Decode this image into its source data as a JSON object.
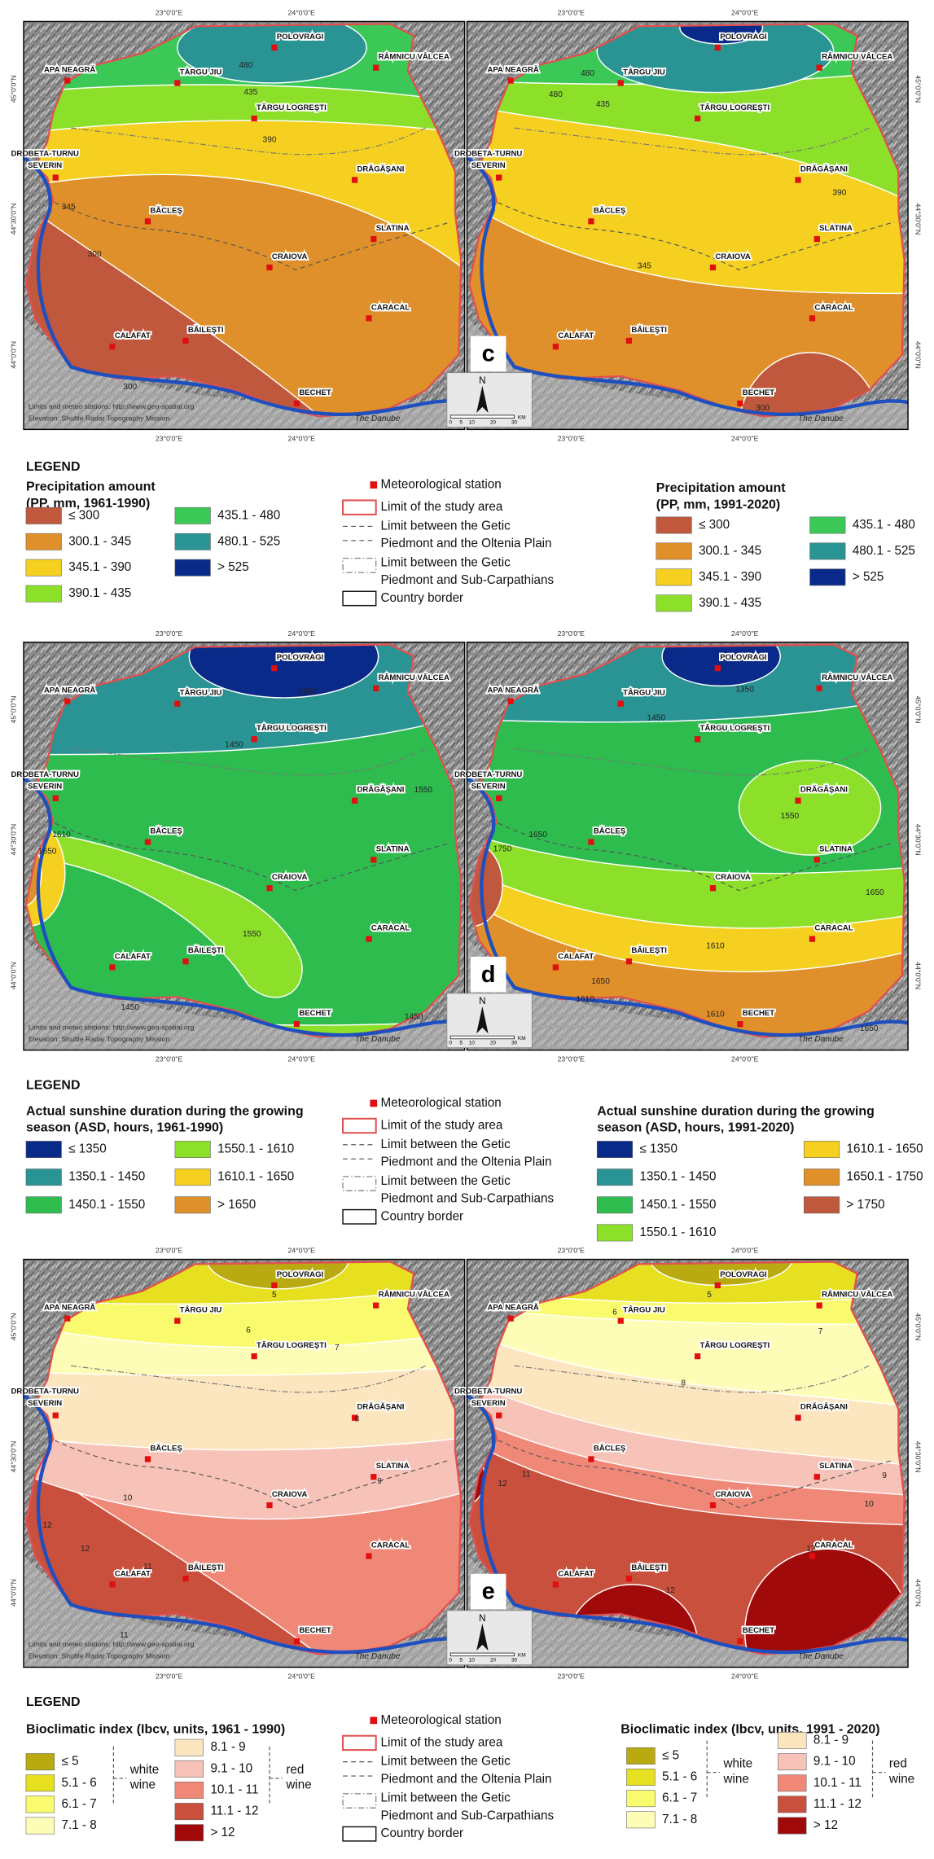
{
  "graticule": {
    "lon": [
      "23°0'0\"E",
      "24°0'0\"E"
    ],
    "lat": [
      "45°0'0\"N",
      "44°30'0\"N",
      "44°0'0\"N"
    ]
  },
  "stations": [
    "POLOVRAGI",
    "RÂMNICU VÂLCEA",
    "APA NEAGRĂ",
    "TÂRGU JIU",
    "TÂRGU LOGREŞTI",
    "DROBETA-TURNU",
    "SEVERIN",
    "DRĂGĂŞANI",
    "BĂCLEŞ",
    "SLATINA",
    "CRAIOVA",
    "CARACAL",
    "CALAFAT",
    "BĂILEŞTI",
    "BECHET"
  ],
  "credits": [
    "Limits and meteo stations: http://www.geo-spatial.org",
    "Elevation: Shuttle Radar Topography Mission"
  ],
  "river": "The Danube",
  "scale": {
    "north": "N",
    "numbers": [
      0,
      5,
      10,
      20,
      30
    ],
    "unit": "KM"
  },
  "common_legend": {
    "heading": "LEGEND",
    "items": [
      "Meteorological station",
      "Limit of the study area",
      "Limit between the Getic",
      "Piedmont and the Oltenia Plain",
      "Limit between the Getic",
      "Piedmont and Sub-Carpathians",
      "Country border"
    ]
  },
  "rows": [
    {
      "letter": "c",
      "maps": [
        {
          "contours": [
            480,
            435,
            390,
            345,
            300,
            300
          ]
        },
        {
          "contours": [
            480,
            435,
            480,
            390,
            345,
            300
          ]
        }
      ],
      "legends": [
        {
          "title": [
            "Precipitation amount",
            "(PP, mm, 1961-1990)"
          ],
          "items": [
            {
              "label": "≤ 300",
              "color": "#c0583e"
            },
            {
              "label": "300.1 - 345",
              "color": "#e0902a"
            },
            {
              "label": "345.1 - 390",
              "color": "#f5d020"
            },
            {
              "label": "390.1 - 435",
              "color": "#8ce02a"
            },
            {
              "label": "435.1 - 480",
              "color": "#3cc857"
            },
            {
              "label": "480.1 - 525",
              "color": "#2a9494"
            },
            {
              "label": "> 525",
              "color": "#0a2a8a"
            }
          ]
        },
        {
          "title": [
            "Precipitation amount",
            "(PP, mm, 1991-2020)"
          ],
          "items": [
            {
              "label": "≤ 300",
              "color": "#c0583e"
            },
            {
              "label": "300.1 - 345",
              "color": "#e0902a"
            },
            {
              "label": "345.1 - 390",
              "color": "#f5d020"
            },
            {
              "label": "390.1 - 435",
              "color": "#8ce02a"
            },
            {
              "label": "435.1 - 480",
              "color": "#3cc857"
            },
            {
              "label": "480.1 - 525",
              "color": "#2a9494"
            },
            {
              "label": "> 525",
              "color": "#0a2a8a"
            }
          ]
        }
      ]
    },
    {
      "letter": "d",
      "maps": [
        {
          "contours": [
            1350,
            1450,
            1550,
            1610,
            1650,
            1550,
            1450,
            1450
          ]
        },
        {
          "contours": [
            1350,
            1450,
            1550,
            1650,
            1750,
            1610,
            1650,
            1650,
            1610,
            1610,
            1650
          ]
        }
      ],
      "legends": [
        {
          "title": [
            "Actual sunshine duration during the growing",
            "season (ASD, hours, 1961-1990)"
          ],
          "items": [
            {
              "label": "≤ 1350",
              "color": "#0a2a8a"
            },
            {
              "label": "1350.1 - 1450",
              "color": "#2a9494"
            },
            {
              "label": "1450.1 - 1550",
              "color": "#2ebc4e"
            },
            {
              "label": "1550.1 - 1610",
              "color": "#8ce02a"
            },
            {
              "label": "1610.1 - 1650",
              "color": "#f5d020"
            },
            {
              "label": "> 1650",
              "color": "#e0902a"
            }
          ]
        },
        {
          "title": [
            "Actual sunshine duration during the growing",
            "season (ASD, hours, 1991-2020)"
          ],
          "items": [
            {
              "label": "≤ 1350",
              "color": "#0a2a8a"
            },
            {
              "label": "1350.1 - 1450",
              "color": "#2a9494"
            },
            {
              "label": "1450.1 - 1550",
              "color": "#2ebc4e"
            },
            {
              "label": "1550.1 - 1610",
              "color": "#8ce02a"
            },
            {
              "label": "1610.1 - 1650",
              "color": "#f5d020"
            },
            {
              "label": "1650.1 - 1750",
              "color": "#e0902a"
            },
            {
              "label": "> 1750",
              "color": "#c0583e"
            }
          ]
        }
      ]
    },
    {
      "letter": "e",
      "maps": [
        {
          "contours": [
            5,
            6,
            7,
            8,
            9,
            10,
            12,
            12,
            11,
            11
          ]
        },
        {
          "contours": [
            5,
            6,
            7,
            8,
            9,
            10,
            11,
            12,
            12,
            12
          ]
        }
      ],
      "legends": [
        {
          "title": [
            "Bioclimatic index (Ibcv, units, 1961 - 1990)"
          ],
          "items": [
            {
              "label": "≤ 5",
              "color": "#b8aa10"
            },
            {
              "label": "5.1 - 6",
              "color": "#e6e020"
            },
            {
              "label": "6.1 - 7",
              "color": "#fafa6e"
            },
            {
              "label": "7.1 - 8",
              "color": "#fdfdb8"
            },
            {
              "label": "8.1 - 9",
              "color": "#fce6c0"
            },
            {
              "label": "9.1 - 10",
              "color": "#f7c2b8"
            },
            {
              "label": "10.1 - 11",
              "color": "#f08878"
            },
            {
              "label": "11.1 - 12",
              "color": "#c8503c"
            },
            {
              "label": "> 12",
              "color": "#a00a0a"
            }
          ],
          "groups": [
            [
              "white",
              "wine"
            ],
            [
              "red",
              "wine"
            ]
          ]
        },
        {
          "title": [
            "Bioclimatic index (Ibcv, units, 1991 - 2020)"
          ],
          "items": [
            {
              "label": "≤ 5",
              "color": "#b8aa10"
            },
            {
              "label": "5.1 - 6",
              "color": "#e6e020"
            },
            {
              "label": "6.1 - 7",
              "color": "#fafa6e"
            },
            {
              "label": "7.1 - 8",
              "color": "#fdfdb8"
            },
            {
              "label": "8.1 - 9",
              "color": "#fce6c0"
            },
            {
              "label": "9.1 - 10",
              "color": "#f7c2b8"
            },
            {
              "label": "10.1 - 11",
              "color": "#f08878"
            },
            {
              "label": "11.1 - 12",
              "color": "#c8503c"
            },
            {
              "label": "> 12",
              "color": "#a00a0a"
            }
          ],
          "groups": [
            [
              "white",
              "wine"
            ],
            [
              "red",
              "wine"
            ]
          ]
        }
      ]
    }
  ]
}
